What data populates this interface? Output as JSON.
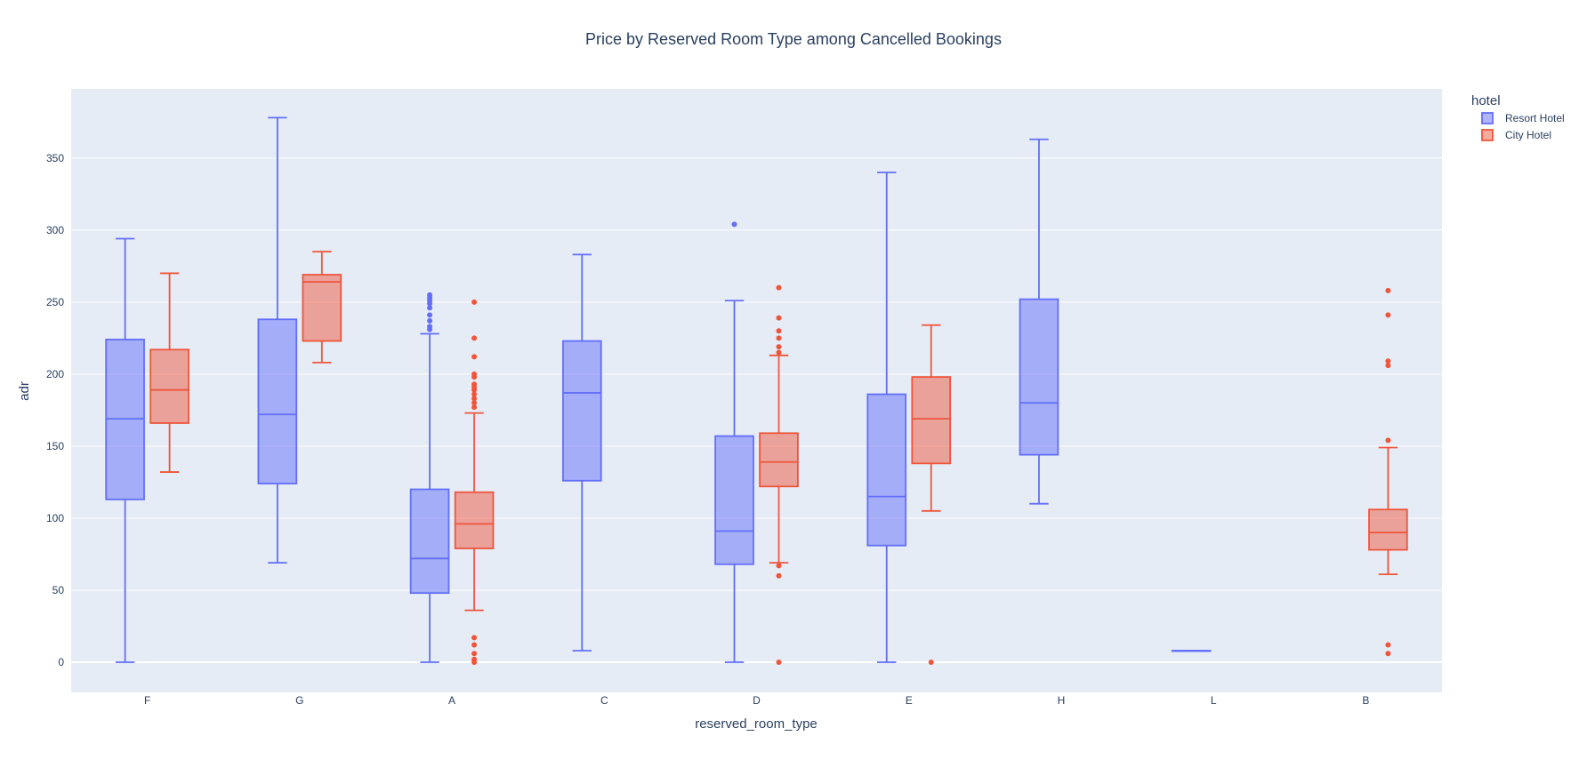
{
  "chart_data": {
    "type": "box",
    "title": "Price by Reserved Room Type among Cancelled Bookings",
    "xlabel": "reserved_room_type",
    "ylabel": "adr",
    "categories": [
      "F",
      "G",
      "A",
      "C",
      "D",
      "E",
      "H",
      "L",
      "B"
    ],
    "ylim": [
      -21,
      398
    ],
    "yticks": [
      0,
      50,
      100,
      150,
      200,
      250,
      300,
      350
    ],
    "grid": true,
    "legend": {
      "title": "hotel",
      "position": "top-right"
    },
    "series": [
      {
        "name": "Resort Hotel",
        "color": "#636efa",
        "boxes": [
          {
            "category": "F",
            "lower_fence": 0,
            "q1": 113,
            "median": 169,
            "q3": 224,
            "upper_fence": 294,
            "outliers": []
          },
          {
            "category": "G",
            "lower_fence": 69,
            "q1": 124,
            "median": 172,
            "q3": 238,
            "upper_fence": 378,
            "outliers": []
          },
          {
            "category": "A",
            "lower_fence": 0,
            "q1": 48,
            "median": 72,
            "q3": 120,
            "upper_fence": 228,
            "outliers": [
              231,
              233,
              237,
              241,
              246,
              249,
              251,
              253,
              255
            ]
          },
          {
            "category": "C",
            "lower_fence": 8,
            "q1": 126,
            "median": 187,
            "q3": 223,
            "upper_fence": 283,
            "outliers": []
          },
          {
            "category": "D",
            "lower_fence": 0,
            "q1": 68,
            "median": 91,
            "q3": 157,
            "upper_fence": 251,
            "outliers": [
              304
            ]
          },
          {
            "category": "E",
            "lower_fence": 0,
            "q1": 81,
            "median": 115,
            "q3": 186,
            "upper_fence": 340,
            "outliers": []
          },
          {
            "category": "H",
            "lower_fence": 110,
            "q1": 144,
            "median": 180,
            "q3": 252,
            "upper_fence": 363,
            "outliers": []
          },
          {
            "category": "L",
            "lower_fence": 8,
            "q1": 8,
            "median": 8,
            "q3": 8,
            "upper_fence": 8,
            "outliers": []
          }
        ]
      },
      {
        "name": "City Hotel",
        "color": "#ef553b",
        "boxes": [
          {
            "category": "F",
            "lower_fence": 132,
            "q1": 166,
            "median": 189,
            "q3": 217,
            "upper_fence": 270,
            "outliers": []
          },
          {
            "category": "G",
            "lower_fence": 208,
            "q1": 223,
            "median": 264,
            "q3": 269,
            "upper_fence": 285,
            "outliers": []
          },
          {
            "category": "A",
            "lower_fence": 36,
            "q1": 79,
            "median": 96,
            "q3": 118,
            "upper_fence": 173,
            "outliers": [
              0,
              2,
              6,
              12,
              17,
              177,
              180,
              183,
              186,
              189,
              191,
              193,
              198,
              200,
              212,
              225,
              250
            ]
          },
          {
            "category": "D",
            "lower_fence": 69,
            "q1": 122,
            "median": 139,
            "q3": 159,
            "upper_fence": 213,
            "outliers": [
              0,
              60,
              67,
              215,
              219,
              225,
              230,
              239,
              260
            ]
          },
          {
            "category": "E",
            "lower_fence": 105,
            "q1": 138,
            "median": 169,
            "q3": 198,
            "upper_fence": 234,
            "outliers": [
              0
            ]
          },
          {
            "category": "B",
            "lower_fence": 61,
            "q1": 78,
            "median": 90,
            "q3": 106,
            "upper_fence": 149,
            "outliers": [
              6,
              12,
              154,
              206,
              209,
              241,
              258
            ]
          }
        ]
      }
    ]
  }
}
